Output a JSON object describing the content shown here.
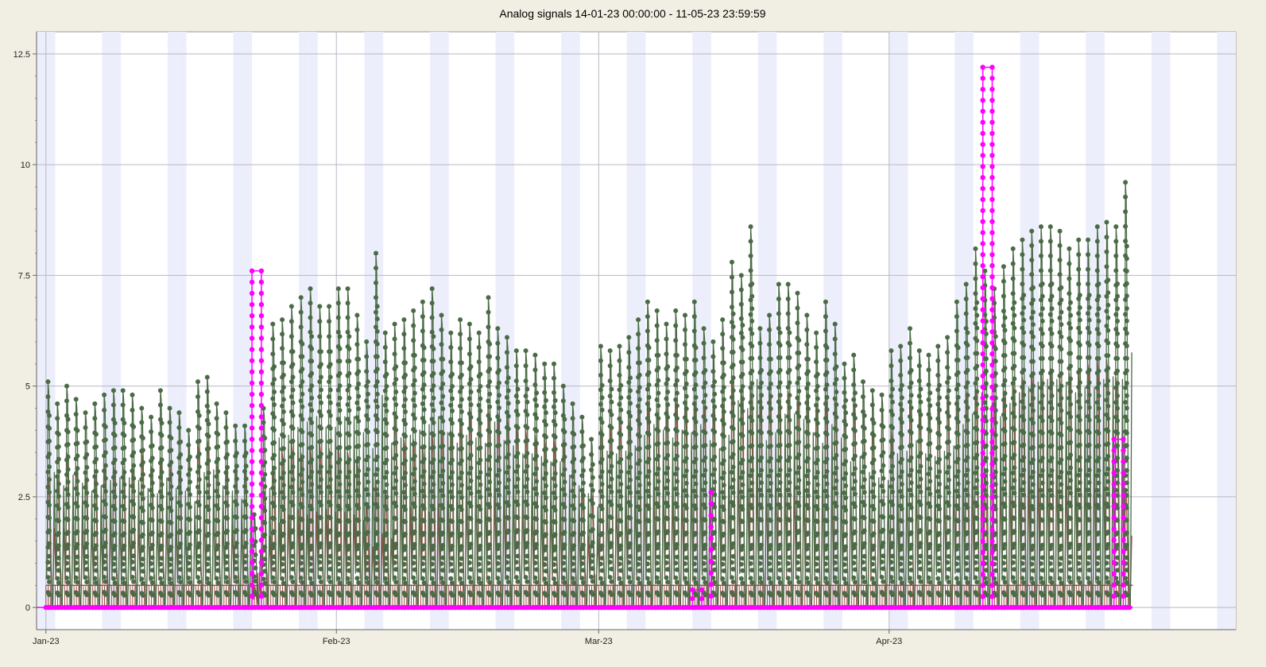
{
  "chart_data": {
    "type": "line",
    "title": "Analog signals 14-01-23 00:00:00 - 11-05-23 23:59:59",
    "xlabel": "",
    "ylabel": "",
    "x_range": [
      "2022-12-31",
      "2023-05-08"
    ],
    "ylim": [
      -0.5,
      13
    ],
    "y_ticks": [
      0,
      2.5,
      5,
      7.5,
      10,
      12.5
    ],
    "y_tick_labels": [
      "0",
      "2.5",
      "5",
      "7.5",
      "10",
      "12.5"
    ],
    "x_ticks": [
      "2023-01-01",
      "2023-02-01",
      "2023-03-01",
      "2023-04-01"
    ],
    "x_tick_labels": [
      "Jan-23",
      "Feb-23",
      "Mar-23",
      "Apr-23"
    ],
    "grid": true,
    "legend": "none",
    "background": {
      "plot": "#ffffff",
      "weekend_band": "#eceefb",
      "outer": "#f1efe3"
    },
    "series": [
      {
        "color": "#4b6b47",
        "style": "daily cycles with dots",
        "points": [
          [
            "2023-01-01",
            5.1
          ],
          [
            "2023-01-02",
            4.6
          ],
          [
            "2023-01-03",
            5.0
          ],
          [
            "2023-01-04",
            4.7
          ],
          [
            "2023-01-05",
            4.4
          ],
          [
            "2023-01-06",
            4.6
          ],
          [
            "2023-01-07",
            4.8
          ],
          [
            "2023-01-08",
            4.9
          ],
          [
            "2023-01-09",
            4.9
          ],
          [
            "2023-01-10",
            4.8
          ],
          [
            "2023-01-11",
            4.5
          ],
          [
            "2023-01-12",
            4.3
          ],
          [
            "2023-01-13",
            4.9
          ],
          [
            "2023-01-14",
            4.5
          ],
          [
            "2023-01-15",
            4.4
          ],
          [
            "2023-01-16",
            4.0
          ],
          [
            "2023-01-17",
            5.1
          ],
          [
            "2023-01-18",
            5.2
          ],
          [
            "2023-01-19",
            4.6
          ],
          [
            "2023-01-20",
            4.4
          ],
          [
            "2023-01-21",
            4.1
          ],
          [
            "2023-01-22",
            4.1
          ],
          [
            "2023-01-23",
            2.1
          ],
          [
            "2023-01-24",
            4.5
          ],
          [
            "2023-01-25",
            6.4
          ],
          [
            "2023-01-26",
            6.5
          ],
          [
            "2023-01-27",
            6.8
          ],
          [
            "2023-01-28",
            7.0
          ],
          [
            "2023-01-29",
            7.2
          ],
          [
            "2023-01-30",
            6.8
          ],
          [
            "2023-01-31",
            6.8
          ],
          [
            "2023-02-01",
            7.2
          ],
          [
            "2023-02-02",
            7.2
          ],
          [
            "2023-02-03",
            6.6
          ],
          [
            "2023-02-04",
            6.0
          ],
          [
            "2023-02-05",
            8.0
          ],
          [
            "2023-02-06",
            6.2
          ],
          [
            "2023-02-07",
            6.4
          ],
          [
            "2023-02-08",
            6.5
          ],
          [
            "2023-02-09",
            6.7
          ],
          [
            "2023-02-10",
            6.9
          ],
          [
            "2023-02-11",
            7.2
          ],
          [
            "2023-02-12",
            6.6
          ],
          [
            "2023-02-13",
            6.2
          ],
          [
            "2023-02-14",
            6.5
          ],
          [
            "2023-02-15",
            6.4
          ],
          [
            "2023-02-16",
            6.2
          ],
          [
            "2023-02-17",
            7.0
          ],
          [
            "2023-02-18",
            6.3
          ],
          [
            "2023-02-19",
            6.1
          ],
          [
            "2023-02-20",
            5.8
          ],
          [
            "2023-02-21",
            5.8
          ],
          [
            "2023-02-22",
            5.7
          ],
          [
            "2023-02-23",
            5.5
          ],
          [
            "2023-02-24",
            5.5
          ],
          [
            "2023-02-25",
            5.0
          ],
          [
            "2023-02-26",
            4.6
          ],
          [
            "2023-02-27",
            4.3
          ],
          [
            "2023-02-28",
            3.8
          ],
          [
            "2023-03-01",
            5.9
          ],
          [
            "2023-03-02",
            5.8
          ],
          [
            "2023-03-03",
            5.9
          ],
          [
            "2023-03-04",
            6.1
          ],
          [
            "2023-03-05",
            6.5
          ],
          [
            "2023-03-06",
            6.9
          ],
          [
            "2023-03-07",
            6.7
          ],
          [
            "2023-03-08",
            6.4
          ],
          [
            "2023-03-09",
            6.7
          ],
          [
            "2023-03-10",
            6.6
          ],
          [
            "2023-03-11",
            6.9
          ],
          [
            "2023-03-12",
            6.3
          ],
          [
            "2023-03-13",
            6.0
          ],
          [
            "2023-03-14",
            6.5
          ],
          [
            "2023-03-15",
            7.8
          ],
          [
            "2023-03-16",
            7.5
          ],
          [
            "2023-03-17",
            8.6
          ],
          [
            "2023-03-18",
            6.3
          ],
          [
            "2023-03-19",
            6.6
          ],
          [
            "2023-03-20",
            7.3
          ],
          [
            "2023-03-21",
            7.3
          ],
          [
            "2023-03-22",
            7.1
          ],
          [
            "2023-03-23",
            6.6
          ],
          [
            "2023-03-24",
            6.2
          ],
          [
            "2023-03-25",
            6.9
          ],
          [
            "2023-03-26",
            6.4
          ],
          [
            "2023-03-27",
            5.5
          ],
          [
            "2023-03-28",
            5.7
          ],
          [
            "2023-03-29",
            5.1
          ],
          [
            "2023-03-30",
            4.9
          ],
          [
            "2023-03-31",
            4.8
          ],
          [
            "2023-04-01",
            5.8
          ],
          [
            "2023-04-02",
            5.9
          ],
          [
            "2023-04-03",
            6.3
          ],
          [
            "2023-04-04",
            5.8
          ],
          [
            "2023-04-05",
            5.7
          ],
          [
            "2023-04-06",
            5.9
          ],
          [
            "2023-04-07",
            6.1
          ],
          [
            "2023-04-08",
            6.9
          ],
          [
            "2023-04-09",
            7.3
          ],
          [
            "2023-04-10",
            8.1
          ],
          [
            "2023-04-11",
            7.6
          ],
          [
            "2023-04-12",
            7.2
          ],
          [
            "2023-04-13",
            7.7
          ],
          [
            "2023-04-14",
            8.1
          ],
          [
            "2023-04-15",
            8.3
          ],
          [
            "2023-04-16",
            8.5
          ],
          [
            "2023-04-17",
            8.6
          ],
          [
            "2023-04-18",
            8.6
          ],
          [
            "2023-04-19",
            8.5
          ],
          [
            "2023-04-20",
            8.1
          ],
          [
            "2023-04-21",
            8.3
          ],
          [
            "2023-04-22",
            8.3
          ],
          [
            "2023-04-23",
            8.6
          ],
          [
            "2023-04-24",
            8.7
          ],
          [
            "2023-04-25",
            8.6
          ],
          [
            "2023-04-26",
            9.6
          ]
        ]
      },
      {
        "color": "#a04d47",
        "style": "daily cycles",
        "points": [
          [
            "2023-01-01",
            3.0
          ],
          [
            "2023-01-02",
            3.0
          ],
          [
            "2023-01-03",
            3.5
          ],
          [
            "2023-01-04",
            3.2
          ],
          [
            "2023-01-05",
            3.0
          ],
          [
            "2023-01-06",
            3.0
          ],
          [
            "2023-01-07",
            3.2
          ],
          [
            "2023-01-08",
            3.2
          ],
          [
            "2023-01-09",
            3.2
          ],
          [
            "2023-01-10",
            3.2
          ],
          [
            "2023-01-11",
            3.5
          ],
          [
            "2023-01-12",
            3.2
          ],
          [
            "2023-01-13",
            3.4
          ],
          [
            "2023-01-14",
            3.2
          ],
          [
            "2023-01-15",
            3.1
          ],
          [
            "2023-01-16",
            3.6
          ],
          [
            "2023-01-17",
            3.7
          ],
          [
            "2023-01-18",
            3.8
          ],
          [
            "2023-01-19",
            3.3
          ],
          [
            "2023-01-20",
            3.2
          ],
          [
            "2023-01-21",
            3.2
          ],
          [
            "2023-01-22",
            3.2
          ],
          [
            "2023-01-23",
            0.5
          ],
          [
            "2023-01-24",
            2.7
          ],
          [
            "2023-01-25",
            3.2
          ],
          [
            "2023-01-26",
            3.5
          ],
          [
            "2023-01-27",
            3.7
          ],
          [
            "2023-01-28",
            3.5
          ],
          [
            "2023-01-29",
            3.6
          ],
          [
            "2023-01-30",
            3.7
          ],
          [
            "2023-01-31",
            3.6
          ],
          [
            "2023-02-01",
            3.6
          ],
          [
            "2023-02-02",
            3.5
          ],
          [
            "2023-02-03",
            3.3
          ],
          [
            "2023-02-04",
            2.3
          ],
          [
            "2023-02-05",
            2.8
          ],
          [
            "2023-02-06",
            2.6
          ],
          [
            "2023-02-07",
            4.4
          ],
          [
            "2023-02-08",
            3.8
          ],
          [
            "2023-02-09",
            3.8
          ],
          [
            "2023-02-10",
            3.6
          ],
          [
            "2023-02-11",
            3.9
          ],
          [
            "2023-02-12",
            4.0
          ],
          [
            "2023-02-13",
            4.0
          ],
          [
            "2023-02-14",
            4.2
          ],
          [
            "2023-02-15",
            4.5
          ],
          [
            "2023-02-16",
            4.6
          ],
          [
            "2023-02-17",
            4.5
          ],
          [
            "2023-02-18",
            4.4
          ],
          [
            "2023-02-19",
            4.3
          ],
          [
            "2023-02-20",
            4.1
          ],
          [
            "2023-02-21",
            4.0
          ],
          [
            "2023-02-22",
            3.9
          ],
          [
            "2023-02-23",
            3.8
          ],
          [
            "2023-02-24",
            3.8
          ],
          [
            "2023-02-25",
            3.8
          ],
          [
            "2023-02-26",
            3.6
          ],
          [
            "2023-02-27",
            2.7
          ],
          [
            "2023-02-28",
            2.6
          ],
          [
            "2023-03-01",
            4.1
          ],
          [
            "2023-03-02",
            4.1
          ],
          [
            "2023-03-03",
            4.2
          ],
          [
            "2023-03-04",
            4.3
          ],
          [
            "2023-03-05",
            4.6
          ],
          [
            "2023-03-06",
            4.7
          ],
          [
            "2023-03-07",
            4.5
          ],
          [
            "2023-03-08",
            4.6
          ],
          [
            "2023-03-09",
            4.7
          ],
          [
            "2023-03-10",
            4.7
          ],
          [
            "2023-03-11",
            4.7
          ],
          [
            "2023-03-12",
            4.6
          ],
          [
            "2023-03-13",
            4.6
          ],
          [
            "2023-03-14",
            4.7
          ],
          [
            "2023-03-15",
            5.2
          ],
          [
            "2023-03-16",
            4.9
          ],
          [
            "2023-03-17",
            5.0
          ],
          [
            "2023-03-18",
            4.8
          ],
          [
            "2023-03-19",
            4.9
          ],
          [
            "2023-03-20",
            4.8
          ],
          [
            "2023-03-21",
            4.9
          ],
          [
            "2023-03-22",
            4.8
          ],
          [
            "2023-03-23",
            4.9
          ],
          [
            "2023-03-24",
            4.6
          ],
          [
            "2023-03-25",
            4.8
          ],
          [
            "2023-03-26",
            4.7
          ],
          [
            "2023-03-27",
            4.6
          ],
          [
            "2023-03-28",
            4.6
          ],
          [
            "2023-03-29",
            4.4
          ],
          [
            "2023-03-30",
            4.0
          ],
          [
            "2023-03-31",
            4.6
          ],
          [
            "2023-04-01",
            4.0
          ],
          [
            "2023-04-02",
            4.6
          ],
          [
            "2023-04-03",
            4.7
          ],
          [
            "2023-04-04",
            4.5
          ],
          [
            "2023-04-05",
            4.6
          ],
          [
            "2023-04-06",
            4.7
          ],
          [
            "2023-04-07",
            4.8
          ],
          [
            "2023-04-08",
            4.8
          ],
          [
            "2023-04-09",
            4.9
          ],
          [
            "2023-04-10",
            5.0
          ],
          [
            "2023-04-11",
            3.1
          ],
          [
            "2023-04-12",
            4.8
          ],
          [
            "2023-04-13",
            4.9
          ],
          [
            "2023-04-14",
            5.1
          ],
          [
            "2023-04-15",
            5.2
          ],
          [
            "2023-04-16",
            5.3
          ],
          [
            "2023-04-17",
            5.3
          ],
          [
            "2023-04-18",
            5.4
          ],
          [
            "2023-04-19",
            5.2
          ],
          [
            "2023-04-20",
            5.3
          ],
          [
            "2023-04-21",
            5.4
          ],
          [
            "2023-04-22",
            5.5
          ],
          [
            "2023-04-23",
            5.6
          ],
          [
            "2023-04-24",
            5.6
          ],
          [
            "2023-04-25",
            5.2
          ],
          [
            "2023-04-26",
            2.7
          ]
        ]
      },
      {
        "color": "#ff00ff",
        "style": "step with dots",
        "points": [
          [
            "2022-12-31",
            0
          ],
          [
            "2023-01-23",
            0
          ],
          [
            "2023-01-23",
            7.6
          ],
          [
            "2023-01-24",
            7.6
          ],
          [
            "2023-01-24",
            0
          ],
          [
            "2023-03-11",
            0
          ],
          [
            "2023-03-11",
            0.4
          ],
          [
            "2023-03-12",
            0.4
          ],
          [
            "2023-03-12",
            0
          ],
          [
            "2023-03-13",
            0
          ],
          [
            "2023-03-13",
            2.6
          ],
          [
            "2023-03-13",
            0
          ],
          [
            "2023-04-11",
            0
          ],
          [
            "2023-04-11",
            12.2
          ],
          [
            "2023-04-12",
            12.2
          ],
          [
            "2023-04-12",
            0
          ],
          [
            "2023-04-25",
            0
          ],
          [
            "2023-04-25",
            3.8
          ],
          [
            "2023-04-26",
            3.8
          ],
          [
            "2023-04-26",
            0
          ],
          [
            "2023-04-27",
            0
          ]
        ]
      }
    ],
    "baseline": {
      "color": "#a04d47",
      "value": 0.5
    }
  }
}
